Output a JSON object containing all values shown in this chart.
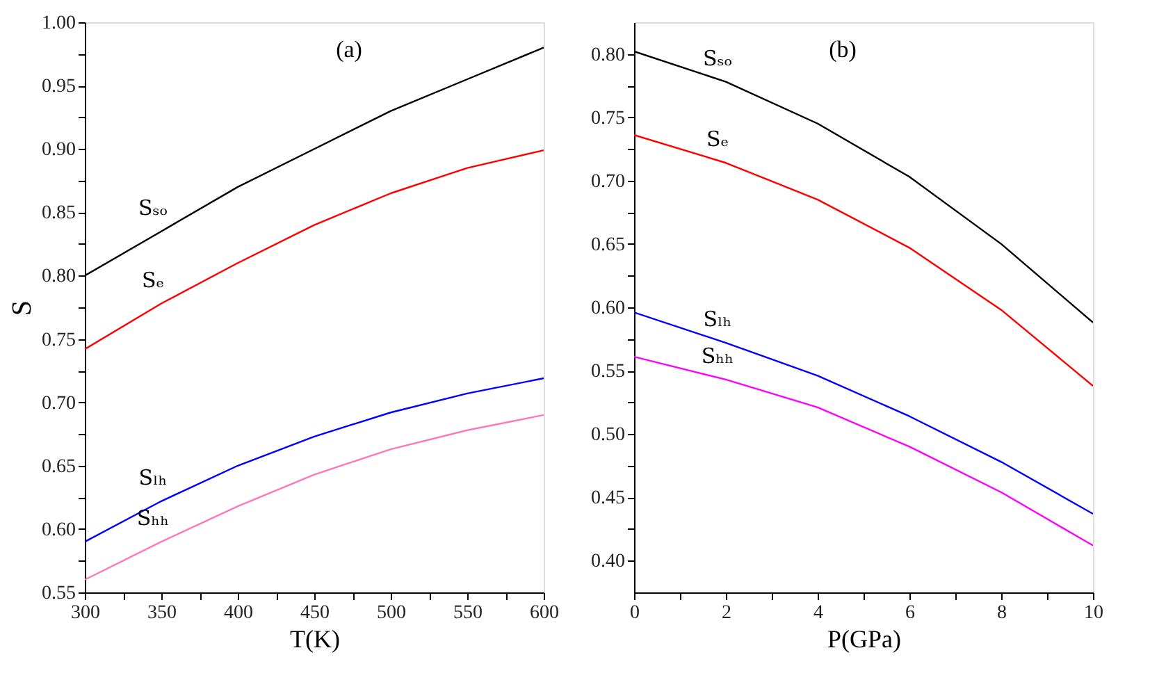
{
  "chart_data": [
    {
      "type": "line",
      "xlabel": "T(K)",
      "ylabel": "S",
      "xlim": [
        300,
        600
      ],
      "ylim": [
        0.55,
        1.0
      ],
      "grid": false,
      "xticks": [
        300,
        {
          "value": 325,
          "label": null
        },
        350,
        {
          "value": 375,
          "label": null
        },
        400,
        {
          "value": 425,
          "label": null
        },
        450,
        {
          "value": 475,
          "label": null
        },
        500,
        {
          "value": 525,
          "label": null
        },
        550,
        {
          "value": 575,
          "label": null
        },
        600
      ],
      "yticks": [
        {
          "value": 0.55,
          "label": "0.55"
        },
        {
          "value": 0.575,
          "label": null
        },
        {
          "value": 0.6,
          "label": "0.60"
        },
        {
          "value": 0.625,
          "label": null
        },
        {
          "value": 0.65,
          "label": "0.65"
        },
        {
          "value": 0.675,
          "label": null
        },
        {
          "value": 0.7,
          "label": "0.70"
        },
        {
          "value": 0.725,
          "label": null
        },
        {
          "value": 0.75,
          "label": "0.75"
        },
        {
          "value": 0.775,
          "label": null
        },
        {
          "value": 0.8,
          "label": "0.80"
        },
        {
          "value": 0.825,
          "label": null
        },
        {
          "value": 0.85,
          "label": "0.85"
        },
        {
          "value": 0.875,
          "label": null
        },
        {
          "value": 0.9,
          "label": "0.90"
        },
        {
          "value": 0.925,
          "label": null
        },
        {
          "value": 0.95,
          "label": "0.95"
        },
        {
          "value": 0.975,
          "label": null
        },
        {
          "value": 1.0,
          "label": "1.00"
        }
      ],
      "x": [
        300,
        350,
        400,
        450,
        500,
        550,
        600
      ],
      "series": [
        {
          "name": "Sₛₒ",
          "color": "#000000",
          "values": [
            0.8,
            0.835,
            0.87,
            0.9,
            0.93,
            0.955,
            0.98
          ]
        },
        {
          "name": "Sₑ",
          "color": "#ff0000",
          "values": [
            0.742,
            0.778,
            0.81,
            0.84,
            0.865,
            0.885,
            0.899
          ]
        },
        {
          "name": "Sₗₕ",
          "color": "#0000ff",
          "values": [
            0.59,
            0.622,
            0.65,
            0.673,
            0.692,
            0.707,
            0.719
          ]
        },
        {
          "name": "Sₕₕ",
          "color": "#ff77bb",
          "values": [
            0.56,
            0.59,
            0.618,
            0.643,
            0.663,
            0.678,
            0.69
          ]
        }
      ],
      "annotations": [
        "(a)"
      ]
    },
    {
      "type": "line",
      "xlabel": "P(GPa)",
      "xlim": [
        0,
        10
      ],
      "ylim": [
        0.375,
        0.825
      ],
      "grid": false,
      "xticks": [
        0,
        {
          "value": 1,
          "label": null
        },
        2,
        {
          "value": 3,
          "label": null
        },
        4,
        {
          "value": 5,
          "label": null
        },
        6,
        {
          "value": 7,
          "label": null
        },
        8,
        {
          "value": 9,
          "label": null
        },
        10
      ],
      "yticks": [
        {
          "value": 0.4,
          "label": "0.40"
        },
        {
          "value": 0.425,
          "label": null
        },
        {
          "value": 0.45,
          "label": "0.45"
        },
        {
          "value": 0.475,
          "label": null
        },
        {
          "value": 0.5,
          "label": "0.50"
        },
        {
          "value": 0.525,
          "label": null
        },
        {
          "value": 0.55,
          "label": "0.55"
        },
        {
          "value": 0.575,
          "label": null
        },
        {
          "value": 0.6,
          "label": "0.60"
        },
        {
          "value": 0.625,
          "label": null
        },
        {
          "value": 0.65,
          "label": "0.65"
        },
        {
          "value": 0.675,
          "label": null
        },
        {
          "value": 0.7,
          "label": "0.70"
        },
        {
          "value": 0.725,
          "label": null
        },
        {
          "value": 0.75,
          "label": "0.75"
        },
        {
          "value": 0.775,
          "label": null
        },
        {
          "value": 0.8,
          "label": "0.80"
        }
      ],
      "x": [
        0,
        2,
        4,
        6,
        8,
        10
      ],
      "series": [
        {
          "name": "Sₛₒ",
          "color": "#000000",
          "values": [
            0.802,
            0.778,
            0.745,
            0.703,
            0.65,
            0.588
          ]
        },
        {
          "name": "Sₑ",
          "color": "#ff0000",
          "values": [
            0.736,
            0.714,
            0.685,
            0.647,
            0.598,
            0.538
          ]
        },
        {
          "name": "Sₗₕ",
          "color": "#0000ff",
          "values": [
            0.596,
            0.572,
            0.546,
            0.514,
            0.478,
            0.437
          ]
        },
        {
          "name": "Sₕₕ",
          "color": "#ff00ff",
          "values": [
            0.561,
            0.543,
            0.521,
            0.49,
            0.454,
            0.412
          ]
        }
      ],
      "annotations": [
        "(b)"
      ]
    }
  ]
}
